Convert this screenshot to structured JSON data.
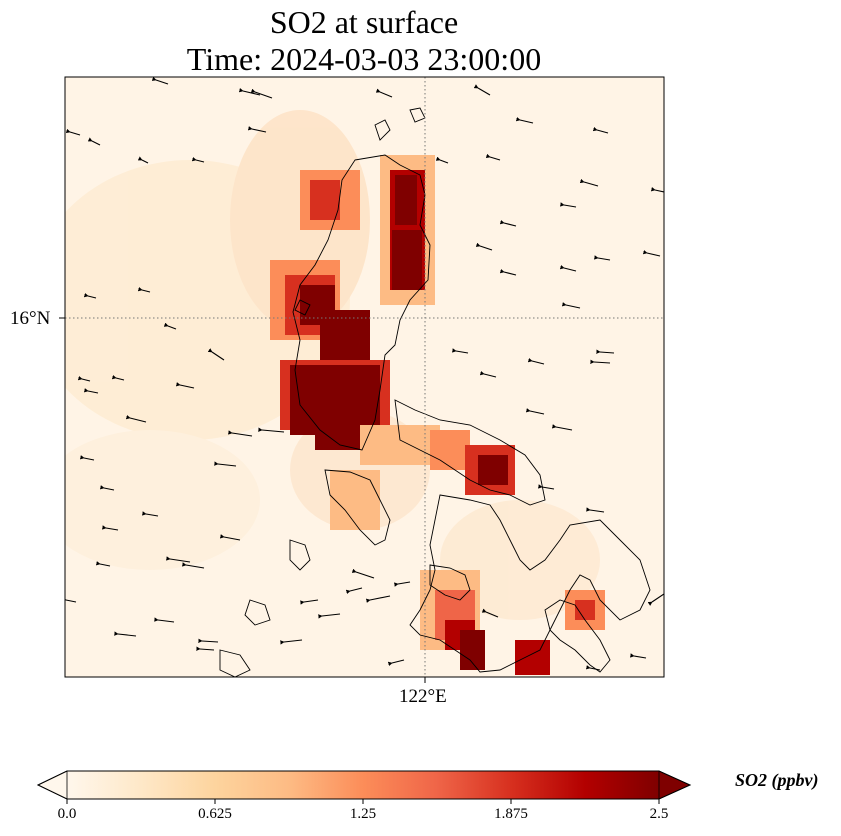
{
  "title": "SO2 at surface",
  "subtitle": "Time: 2024-03-03 23:00:00",
  "map": {
    "lat_gridline": "16°N",
    "lon_gridline": "122°E",
    "background_color": "#fff4e6",
    "coastline_color": "#000000",
    "gridline_style": "dotted"
  },
  "colorbar": {
    "label": "SO2 (ppbv)",
    "min": 0.0,
    "max": 2.5,
    "ticks": [
      "0.0",
      "0.625",
      "1.25",
      "1.875",
      "2.5"
    ],
    "colormap": "OrRd",
    "extend": "both",
    "colors": [
      "#fff7ec",
      "#fee8c8",
      "#fdd49e",
      "#fdbb84",
      "#fc8d59",
      "#ef6548",
      "#d7301f",
      "#b30000",
      "#7f0000"
    ]
  },
  "chart_data": {
    "type": "heatmap",
    "variable": "SO2",
    "units": "ppbv",
    "time": "2024-03-03 23:00:00",
    "range": [
      0.0,
      2.5
    ],
    "features": [
      "concentration field",
      "wind vectors",
      "coastlines"
    ]
  }
}
